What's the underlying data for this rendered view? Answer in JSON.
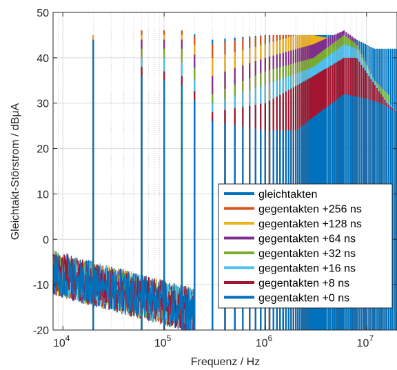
{
  "chart_data": {
    "type": "line",
    "title": "",
    "xlabel": "Frequenz / Hz",
    "ylabel": "Gleichtakt-Störstrom / dBμA",
    "x_scale": "log",
    "xlim": [
      8000,
      20000000
    ],
    "ylim": [
      -20,
      50
    ],
    "grid": true,
    "legend_position": "bottom-right",
    "x_ticks": [
      {
        "value": 10000,
        "base": "10",
        "exp": "4"
      },
      {
        "value": 100000,
        "base": "10",
        "exp": "5"
      },
      {
        "value": 1000000,
        "base": "10",
        "exp": "6"
      },
      {
        "value": 10000000,
        "base": "10",
        "exp": "7"
      }
    ],
    "y_ticks": [
      {
        "value": -20,
        "label": "-20"
      },
      {
        "value": -10,
        "label": "-10"
      },
      {
        "value": 0,
        "label": "0"
      },
      {
        "value": 10,
        "label": "10"
      },
      {
        "value": 20,
        "label": "20"
      },
      {
        "value": 30,
        "label": "30"
      },
      {
        "value": 40,
        "label": "40"
      },
      {
        "value": 50,
        "label": "50"
      }
    ],
    "series": [
      {
        "name": "gleichtakten",
        "color": "#0072BD",
        "cutoff_hz": 40000000,
        "envelope": [
          [
            8000,
            -10
          ],
          [
            19000,
            -15
          ],
          [
            20000,
            45
          ],
          [
            21000,
            -14
          ],
          [
            60000,
            46
          ],
          [
            100000,
            46
          ],
          [
            150000,
            46
          ],
          [
            300000,
            44
          ],
          [
            1000000,
            45
          ],
          [
            3000000,
            45
          ],
          [
            5000000,
            45
          ],
          [
            8000000,
            44
          ],
          [
            12000000,
            42
          ],
          [
            20000000,
            42
          ]
        ]
      },
      {
        "name": "gegentakten +256 ns",
        "color": "#D95319",
        "cutoff_hz": 4000000,
        "envelope": [
          [
            8000,
            -10
          ],
          [
            20000,
            45
          ],
          [
            60000,
            46
          ],
          [
            100000,
            46
          ],
          [
            150000,
            46
          ],
          [
            300000,
            43
          ],
          [
            1000000,
            45
          ],
          [
            2000000,
            45
          ],
          [
            3000000,
            44
          ],
          [
            4000000,
            38
          ],
          [
            20000000,
            30
          ]
        ]
      },
      {
        "name": "gegentakten +128 ns",
        "color": "#EDB120",
        "cutoff_hz": 6000000,
        "envelope": [
          [
            8000,
            -10
          ],
          [
            20000,
            45
          ],
          [
            60000,
            45
          ],
          [
            100000,
            45
          ],
          [
            150000,
            45
          ],
          [
            300000,
            40
          ],
          [
            1000000,
            43
          ],
          [
            2000000,
            45
          ],
          [
            3000000,
            45
          ],
          [
            5000000,
            44
          ],
          [
            6000000,
            38
          ],
          [
            20000000,
            30
          ]
        ]
      },
      {
        "name": "gegentakten +64 ns",
        "color": "#7E2F8E",
        "cutoff_hz": 9000000,
        "envelope": [
          [
            8000,
            -10
          ],
          [
            20000,
            44
          ],
          [
            60000,
            44
          ],
          [
            100000,
            44
          ],
          [
            150000,
            44
          ],
          [
            300000,
            36
          ],
          [
            1000000,
            40
          ],
          [
            3000000,
            43
          ],
          [
            6000000,
            46
          ],
          [
            8000000,
            44
          ],
          [
            9000000,
            38
          ],
          [
            20000000,
            30
          ]
        ]
      },
      {
        "name": "gegentakten +32 ns",
        "color": "#77AC30",
        "cutoff_hz": 12000000,
        "envelope": [
          [
            8000,
            -10
          ],
          [
            20000,
            44
          ],
          [
            60000,
            42
          ],
          [
            100000,
            42
          ],
          [
            150000,
            42
          ],
          [
            300000,
            32
          ],
          [
            1000000,
            37
          ],
          [
            3000000,
            40
          ],
          [
            6000000,
            45
          ],
          [
            8000000,
            43
          ],
          [
            12000000,
            35
          ],
          [
            20000000,
            30
          ]
        ]
      },
      {
        "name": "gegentakten +16 ns",
        "color": "#4DBEEE",
        "cutoff_hz": 14000000,
        "envelope": [
          [
            8000,
            -10
          ],
          [
            20000,
            44
          ],
          [
            60000,
            40
          ],
          [
            100000,
            40
          ],
          [
            150000,
            39
          ],
          [
            300000,
            30
          ],
          [
            1000000,
            34
          ],
          [
            3000000,
            38
          ],
          [
            6000000,
            43
          ],
          [
            8000000,
            42
          ],
          [
            14000000,
            32
          ],
          [
            20000000,
            28
          ]
        ]
      },
      {
        "name": "gegentakten +8 ns",
        "color": "#A2142F",
        "cutoff_hz": 16000000,
        "envelope": [
          [
            8000,
            -10
          ],
          [
            20000,
            44
          ],
          [
            60000,
            38
          ],
          [
            100000,
            37
          ],
          [
            150000,
            36
          ],
          [
            300000,
            28
          ],
          [
            1000000,
            30
          ],
          [
            3000000,
            36
          ],
          [
            6000000,
            40
          ],
          [
            8000000,
            40
          ],
          [
            16000000,
            30
          ],
          [
            20000000,
            28
          ]
        ]
      },
      {
        "name": "gegentakten +0 ns",
        "color": "#0072BD",
        "cutoff_hz": 18000000,
        "envelope": [
          [
            8000,
            -10
          ],
          [
            20000,
            44
          ],
          [
            60000,
            36
          ],
          [
            100000,
            35
          ],
          [
            150000,
            34
          ],
          [
            300000,
            26
          ],
          [
            1000000,
            24
          ],
          [
            2000000,
            24
          ],
          [
            6000000,
            32
          ],
          [
            10000000,
            31
          ],
          [
            14000000,
            30
          ],
          [
            20000000,
            28
          ]
        ]
      }
    ],
    "sparse_lines": [
      20000,
      60000,
      100000,
      150000
    ]
  }
}
